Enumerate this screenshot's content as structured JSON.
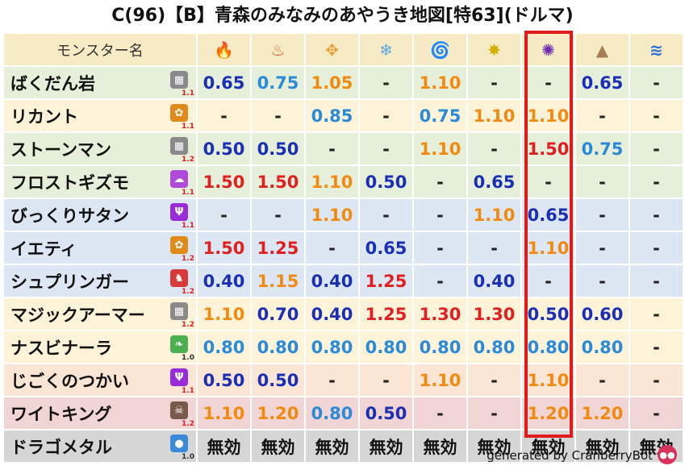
{
  "title": "C(96)【B】青森のみなみのあやうき地図[特63](ドルマ)",
  "header": {
    "name_label": "モンスター名",
    "elements": [
      {
        "name": "fire-icon",
        "glyph": "🔥",
        "color": "#e0441c"
      },
      {
        "name": "flame-icon",
        "glyph": "♨",
        "color": "#e8602a"
      },
      {
        "name": "explosion-icon",
        "glyph": "✥",
        "color": "#e8a13a"
      },
      {
        "name": "ice-icon",
        "glyph": "❄",
        "color": "#5aa7e0"
      },
      {
        "name": "wind-icon",
        "glyph": "🌀",
        "color": "#6ab04c"
      },
      {
        "name": "light-icon",
        "glyph": "✸",
        "color": "#d4b000"
      },
      {
        "name": "dark-icon",
        "glyph": "✺",
        "color": "#6a2bb0"
      },
      {
        "name": "earth-icon",
        "glyph": "▲",
        "color": "#a67c52"
      },
      {
        "name": "water-icon",
        "glyph": "≋",
        "color": "#2a6fd8"
      }
    ]
  },
  "rows": [
    {
      "name": "ばくだん岩",
      "bg": "#e6efd9",
      "icon": {
        "name": "stone-type-icon",
        "glyph": "▦",
        "color": "#8a8a8a"
      },
      "mult": "1.1",
      "mult_color": "#e02020",
      "vals": [
        {
          "v": "0.65",
          "c": "#1a2fb5"
        },
        {
          "v": "0.75",
          "c": "#2b8ad8"
        },
        {
          "v": "1.05",
          "c": "#f08a10"
        },
        {
          "v": "-",
          "c": "#222"
        },
        {
          "v": "1.10",
          "c": "#f08a10"
        },
        {
          "v": "-",
          "c": "#222"
        },
        {
          "v": "-",
          "c": "#222"
        },
        {
          "v": "0.65",
          "c": "#1a2fb5"
        },
        {
          "v": "-",
          "c": "#222"
        }
      ]
    },
    {
      "name": "リカント",
      "bg": "#fdf3d9",
      "icon": {
        "name": "beast-paw-icon",
        "glyph": "✿",
        "color": "#e08a1a"
      },
      "mult": "1.1",
      "mult_color": "#e02020",
      "vals": [
        {
          "v": "-",
          "c": "#222"
        },
        {
          "v": "-",
          "c": "#222"
        },
        {
          "v": "0.85",
          "c": "#2b8ad8"
        },
        {
          "v": "-",
          "c": "#222"
        },
        {
          "v": "0.75",
          "c": "#2b8ad8"
        },
        {
          "v": "1.10",
          "c": "#f08a10"
        },
        {
          "v": "1.10",
          "c": "#f08a10"
        },
        {
          "v": "-",
          "c": "#222"
        },
        {
          "v": "-",
          "c": "#222"
        }
      ]
    },
    {
      "name": "ストーンマン",
      "bg": "#e6efd9",
      "icon": {
        "name": "stone-type-icon",
        "glyph": "▦",
        "color": "#8a8a8a"
      },
      "mult": "1.2",
      "mult_color": "#e02020",
      "vals": [
        {
          "v": "0.50",
          "c": "#1a2fb5"
        },
        {
          "v": "0.50",
          "c": "#1a2fb5"
        },
        {
          "v": "-",
          "c": "#222"
        },
        {
          "v": "-",
          "c": "#222"
        },
        {
          "v": "1.10",
          "c": "#f08a10"
        },
        {
          "v": "-",
          "c": "#222"
        },
        {
          "v": "1.50",
          "c": "#e02020"
        },
        {
          "v": "0.75",
          "c": "#2b8ad8"
        },
        {
          "v": "-",
          "c": "#222"
        }
      ]
    },
    {
      "name": "フロストギズモ",
      "bg": "#e6efd9",
      "icon": {
        "name": "gizmo-type-icon",
        "glyph": "☁",
        "color": "#b04ad8"
      },
      "mult": "1.1",
      "mult_color": "#e02020",
      "vals": [
        {
          "v": "1.50",
          "c": "#e02020"
        },
        {
          "v": "1.50",
          "c": "#e02020"
        },
        {
          "v": "1.10",
          "c": "#f08a10"
        },
        {
          "v": "0.50",
          "c": "#1a2fb5"
        },
        {
          "v": "-",
          "c": "#222"
        },
        {
          "v": "0.65",
          "c": "#1a2fb5"
        },
        {
          "v": "-",
          "c": "#222"
        },
        {
          "v": "-",
          "c": "#222"
        },
        {
          "v": "-",
          "c": "#222"
        }
      ]
    },
    {
      "name": "びっくりサタン",
      "bg": "#dde7f3",
      "icon": {
        "name": "demon-type-icon",
        "glyph": "Ψ",
        "color": "#9a2bd8"
      },
      "mult": "1.1",
      "mult_color": "#e02020",
      "vals": [
        {
          "v": "-",
          "c": "#222"
        },
        {
          "v": "-",
          "c": "#222"
        },
        {
          "v": "1.10",
          "c": "#f08a10"
        },
        {
          "v": "-",
          "c": "#222"
        },
        {
          "v": "-",
          "c": "#222"
        },
        {
          "v": "1.10",
          "c": "#f08a10"
        },
        {
          "v": "0.65",
          "c": "#1a2fb5"
        },
        {
          "v": "-",
          "c": "#222"
        },
        {
          "v": "-",
          "c": "#222"
        }
      ]
    },
    {
      "name": "イエティ",
      "bg": "#dde7f3",
      "icon": {
        "name": "beast-paw-icon",
        "glyph": "✿",
        "color": "#e08a1a"
      },
      "mult": "1.2",
      "mult_color": "#e02020",
      "vals": [
        {
          "v": "1.50",
          "c": "#e02020"
        },
        {
          "v": "1.25",
          "c": "#e02020"
        },
        {
          "v": "-",
          "c": "#222"
        },
        {
          "v": "0.65",
          "c": "#1a2fb5"
        },
        {
          "v": "-",
          "c": "#222"
        },
        {
          "v": "-",
          "c": "#222"
        },
        {
          "v": "1.10",
          "c": "#f08a10"
        },
        {
          "v": "-",
          "c": "#222"
        },
        {
          "v": "-",
          "c": "#222"
        }
      ]
    },
    {
      "name": "シュプリンガー",
      "bg": "#dde7f3",
      "icon": {
        "name": "dragon-type-icon",
        "glyph": "♞",
        "color": "#d83a3a"
      },
      "mult": "1.2",
      "mult_color": "#e02020",
      "vals": [
        {
          "v": "0.40",
          "c": "#1a2fb5"
        },
        {
          "v": "1.15",
          "c": "#f08a10"
        },
        {
          "v": "0.40",
          "c": "#1a2fb5"
        },
        {
          "v": "1.25",
          "c": "#e02020"
        },
        {
          "v": "-",
          "c": "#222"
        },
        {
          "v": "0.40",
          "c": "#1a2fb5"
        },
        {
          "v": "-",
          "c": "#222"
        },
        {
          "v": "-",
          "c": "#222"
        },
        {
          "v": "-",
          "c": "#222"
        }
      ]
    },
    {
      "name": "マジックアーマー",
      "bg": "#fdf3d9",
      "icon": {
        "name": "stone-type-icon",
        "glyph": "▦",
        "color": "#8a8a8a"
      },
      "mult": "1.2",
      "mult_color": "#e02020",
      "vals": [
        {
          "v": "1.10",
          "c": "#f08a10"
        },
        {
          "v": "0.70",
          "c": "#1a2fb5"
        },
        {
          "v": "0.40",
          "c": "#1a2fb5"
        },
        {
          "v": "1.25",
          "c": "#e02020"
        },
        {
          "v": "1.30",
          "c": "#e02020"
        },
        {
          "v": "1.30",
          "c": "#e02020"
        },
        {
          "v": "0.50",
          "c": "#1a2fb5"
        },
        {
          "v": "0.60",
          "c": "#1a2fb5"
        },
        {
          "v": "-",
          "c": "#222"
        }
      ]
    },
    {
      "name": "ナスビナーラ",
      "bg": "#fdf3d9",
      "icon": {
        "name": "leaf-type-icon",
        "glyph": "❧",
        "color": "#4caf50"
      },
      "mult": "1.0",
      "mult_color": "#333333",
      "vals": [
        {
          "v": "0.80",
          "c": "#2b8ad8"
        },
        {
          "v": "0.80",
          "c": "#2b8ad8"
        },
        {
          "v": "0.80",
          "c": "#2b8ad8"
        },
        {
          "v": "0.80",
          "c": "#2b8ad8"
        },
        {
          "v": "0.80",
          "c": "#2b8ad8"
        },
        {
          "v": "0.80",
          "c": "#2b8ad8"
        },
        {
          "v": "0.80",
          "c": "#2b8ad8"
        },
        {
          "v": "0.80",
          "c": "#2b8ad8"
        },
        {
          "v": "-",
          "c": "#222"
        }
      ]
    },
    {
      "name": "じごくのつかい",
      "bg": "#fbe6d6",
      "icon": {
        "name": "demon-type-icon",
        "glyph": "Ψ",
        "color": "#9a2bd8"
      },
      "mult": "1.1",
      "mult_color": "#e02020",
      "vals": [
        {
          "v": "0.50",
          "c": "#1a2fb5"
        },
        {
          "v": "0.50",
          "c": "#1a2fb5"
        },
        {
          "v": "-",
          "c": "#222"
        },
        {
          "v": "-",
          "c": "#222"
        },
        {
          "v": "1.10",
          "c": "#f08a10"
        },
        {
          "v": "-",
          "c": "#222"
        },
        {
          "v": "1.10",
          "c": "#f08a10"
        },
        {
          "v": "-",
          "c": "#222"
        },
        {
          "v": "-",
          "c": "#222"
        }
      ]
    },
    {
      "name": "ワイトキング",
      "bg": "#f1d4d4",
      "icon": {
        "name": "skull-type-icon",
        "glyph": "☠",
        "color": "#7a5a4a"
      },
      "mult": "1.2",
      "mult_color": "#e02020",
      "vals": [
        {
          "v": "1.10",
          "c": "#f08a10"
        },
        {
          "v": "1.20",
          "c": "#f08a10"
        },
        {
          "v": "0.80",
          "c": "#2b8ad8"
        },
        {
          "v": "0.50",
          "c": "#1a2fb5"
        },
        {
          "v": "-",
          "c": "#222"
        },
        {
          "v": "-",
          "c": "#222"
        },
        {
          "v": "1.20",
          "c": "#f08a10"
        },
        {
          "v": "1.20",
          "c": "#f08a10"
        },
        {
          "v": "-",
          "c": "#222"
        }
      ]
    },
    {
      "name": "ドラゴメタル",
      "bg": "#d6d6d6",
      "icon": {
        "name": "slime-type-icon",
        "glyph": "●",
        "color": "#3a8ad8"
      },
      "mult": "1.0",
      "mult_color": "#333333",
      "vals": [
        {
          "v": "無効",
          "c": "#111"
        },
        {
          "v": "無効",
          "c": "#111"
        },
        {
          "v": "無効",
          "c": "#111"
        },
        {
          "v": "無効",
          "c": "#111"
        },
        {
          "v": "無効",
          "c": "#111"
        },
        {
          "v": "無効",
          "c": "#111"
        },
        {
          "v": "無効",
          "c": "#111"
        },
        {
          "v": "無効",
          "c": "#111"
        },
        {
          "v": "無効",
          "c": "#111"
        }
      ]
    }
  ],
  "footer": "generated by CranberryBot"
}
